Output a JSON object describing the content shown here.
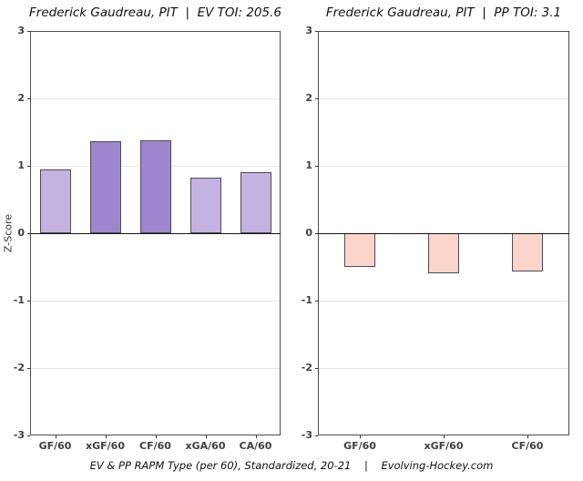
{
  "page": {
    "ylabel": "Z-Score",
    "caption": "EV & PP RAPM Type (per 60), Standardized, 20-21    |    Evolving-Hockey.com"
  },
  "colors": {
    "light_purple": "#c4b2e0",
    "dark_purple": "#9d86cb",
    "light_pink": "#fbd5ca",
    "bar_stroke": "#4f4a57",
    "gridline": "#e4e4e4",
    "zero_line": "#141414",
    "panel_border": "#4d4d4d",
    "text": "#111111",
    "tick_text": "#3f3f3f"
  },
  "chart_data": [
    {
      "type": "bar",
      "title": "Frederick Gaudreau, PIT  |  EV TOI: 205.6",
      "categories": [
        "GF/60",
        "xGF/60",
        "CF/60",
        "xGA/60",
        "CA/60"
      ],
      "values": [
        0.95,
        1.37,
        1.38,
        0.83,
        0.91
      ],
      "bar_colors": [
        "#c4b2e0",
        "#9d86cb",
        "#9d86cb",
        "#c4b2e0",
        "#c4b2e0"
      ],
      "ylabel": "Z-Score",
      "ylim": [
        -3,
        3
      ],
      "yticks": [
        3,
        2,
        1,
        0,
        -1,
        -2,
        -3
      ],
      "grid": "major-horizontal",
      "legend": "none"
    },
    {
      "type": "bar",
      "title": "Frederick Gaudreau, PIT  |  PP TOI: 3.1",
      "categories": [
        "GF/60",
        "xGF/60",
        "CF/60"
      ],
      "values": [
        -0.5,
        -0.59,
        -0.57
      ],
      "bar_colors": [
        "#fbd5ca",
        "#fbd5ca",
        "#fbd5ca"
      ],
      "ylabel": "",
      "ylim": [
        -3,
        3
      ],
      "yticks": [
        3,
        2,
        1,
        0,
        -1,
        -2,
        -3
      ],
      "grid": "major-horizontal",
      "legend": "none"
    }
  ]
}
